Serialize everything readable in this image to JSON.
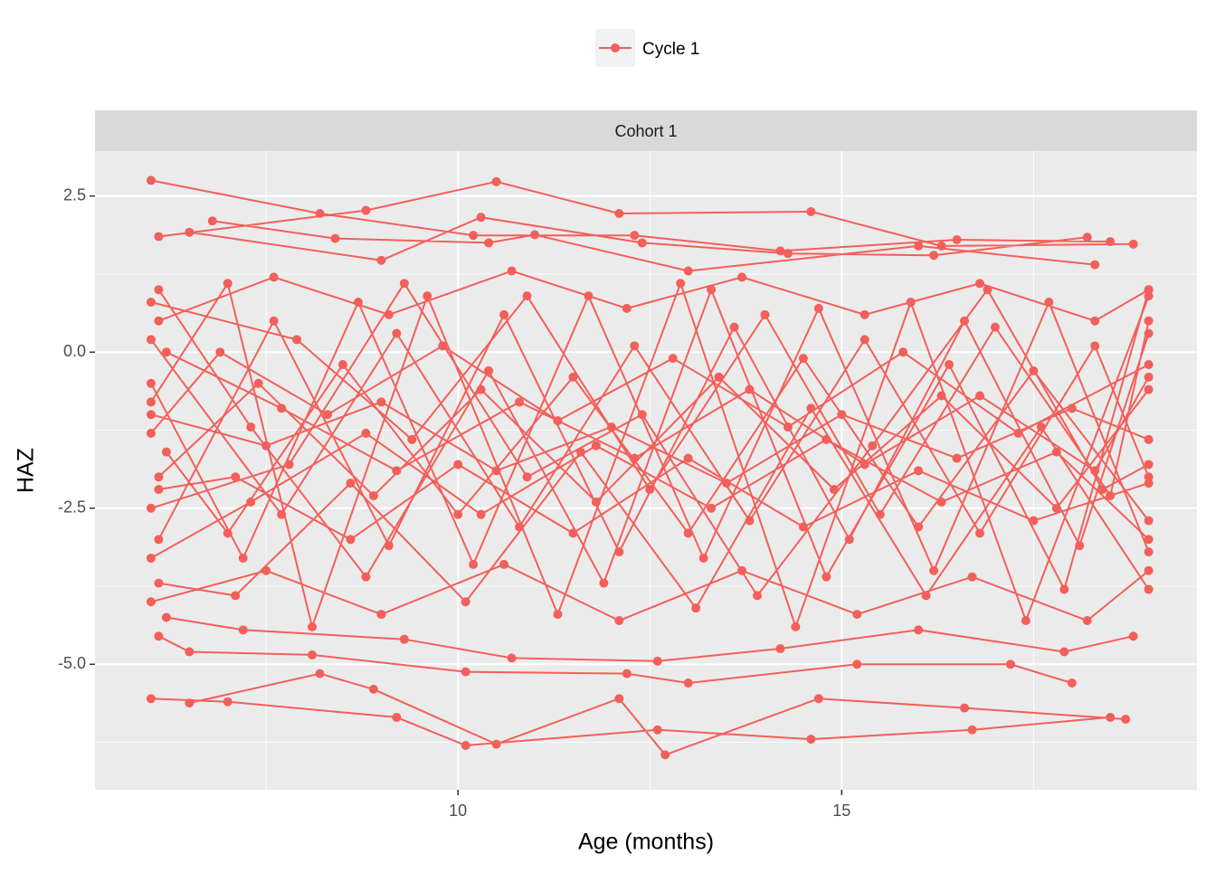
{
  "chart_data": {
    "type": "line",
    "facet": "Cohort 1",
    "x_label": "Age (months)",
    "y_label": "HAZ",
    "xlim": [
      5.27,
      19.63
    ],
    "xticks": [
      10,
      15
    ],
    "x_minor_grid": [
      7.5,
      12.5,
      17.5
    ],
    "ylim": [
      -7.01,
      3.22
    ],
    "yticks": [
      2.5,
      {
        "value": 0,
        "label": "0.0"
      },
      -2.5,
      {
        "value": -5,
        "label": "-5.0"
      }
    ],
    "y_minor_grid": [
      1.25,
      -1.25,
      -3.75,
      -6.25
    ],
    "grid": true,
    "legend_position": "top",
    "x": [
      6.0,
      8.2,
      10.2,
      12.3,
      14.2,
      16.5,
      18.5,
      null,
      6.1,
      8.8,
      10.5,
      12.1,
      14.6,
      16.3,
      18.8,
      null,
      6.5,
      9.0,
      10.3,
      12.4,
      14.3,
      16.2,
      18.2,
      null,
      6.8,
      8.4,
      10.4,
      11.0,
      13.0,
      16.0,
      18.3,
      null,
      6.0,
      7.0,
      9.2,
      10.1,
      12.6,
      14.6,
      16.7,
      18.5,
      null,
      6.5,
      8.2,
      8.9,
      10.5,
      12.1,
      12.7,
      14.7,
      16.6,
      18.7,
      null,
      6.1,
      6.5,
      8.1,
      10.1,
      12.2,
      13.0,
      15.2,
      17.2,
      18.0,
      null,
      6.2,
      7.2,
      9.3,
      10.7,
      12.6,
      14.2,
      16.0,
      17.9,
      18.8,
      null,
      6.0,
      7.5,
      9.0,
      10.5,
      12.0,
      13.5,
      15.0,
      16.5,
      18.0,
      19.0,
      null,
      6.1,
      7.4,
      8.9,
      10.3,
      11.8,
      13.4,
      14.9,
      16.3,
      17.8,
      19.0,
      null,
      6.0,
      7.7,
      9.2,
      10.8,
      12.3,
      13.8,
      15.3,
      16.8,
      18.3,
      19.0,
      null,
      6.1,
      7.6,
      9.1,
      10.6,
      12.1,
      13.6,
      15.1,
      16.6,
      18.1,
      19.0,
      null,
      6.0,
      7.2,
      8.7,
      10.2,
      11.7,
      13.2,
      14.7,
      16.2,
      17.7,
      19.0,
      null,
      6.1,
      7.3,
      8.8,
      10.4,
      11.9,
      13.3,
      14.8,
      16.4,
      17.9,
      19.0,
      null,
      6.0,
      7.8,
      9.3,
      10.9,
      12.4,
      13.9,
      15.4,
      16.9,
      18.4,
      19.0,
      null,
      6.1,
      7.1,
      8.6,
      10.1,
      11.6,
      13.1,
      14.6,
      16.1,
      17.6,
      19.0,
      null,
      6.0,
      7.9,
      9.4,
      10.9,
      12.5,
      14.0,
      15.5,
      17.0,
      18.5,
      19.0,
      null,
      6.2,
      7.0,
      8.5,
      10.0,
      11.5,
      13.0,
      14.5,
      16.0,
      17.5,
      19.0,
      null,
      6.0,
      7.5,
      9.0,
      10.6,
      12.1,
      13.7,
      15.2,
      16.7,
      18.2,
      19.0,
      null,
      6.1,
      7.6,
      9.1,
      10.7,
      12.2,
      13.7,
      15.3,
      16.8,
      18.3,
      19.0,
      null,
      6.0,
      6.9,
      8.3,
      9.8,
      11.3,
      12.8,
      14.3,
      15.8,
      17.3,
      19.0,
      null,
      6.1,
      7.1,
      8.6,
      10.0,
      11.5,
      13.0,
      14.5,
      16.0,
      17.5,
      19.0,
      null,
      6.0,
      7.3,
      8.8,
      10.3,
      11.8,
      13.3,
      14.8,
      16.3,
      17.8,
      19.0,
      null,
      6.2,
      7.7,
      9.2,
      10.8,
      12.3,
      13.8,
      15.3,
      16.8,
      18.3,
      19.0,
      null,
      6.0,
      7.0,
      8.1,
      9.6,
      11.3,
      12.9,
      14.4,
      15.9,
      17.4,
      19.0
    ],
    "series": [
      {
        "name": "Cycle 1",
        "color": "#f35f5a",
        "values": [
          2.75,
          2.22,
          1.87,
          1.87,
          1.62,
          1.8,
          1.77,
          null,
          1.85,
          2.27,
          2.73,
          2.22,
          2.25,
          1.7,
          1.73,
          null,
          1.92,
          1.47,
          2.16,
          1.75,
          1.58,
          1.55,
          1.84,
          null,
          2.1,
          1.82,
          1.75,
          1.88,
          1.3,
          1.7,
          1.4,
          null,
          -5.55,
          -5.6,
          -5.85,
          -6.3,
          -6.05,
          -6.2,
          -6.05,
          -5.85,
          null,
          -5.62,
          -5.15,
          -5.4,
          -6.28,
          -5.55,
          -6.45,
          -5.55,
          -5.7,
          -5.88,
          null,
          -4.55,
          -4.8,
          -4.85,
          -5.12,
          -5.15,
          -5.3,
          -5.0,
          -5.0,
          -5.3,
          null,
          -4.25,
          -4.45,
          -4.6,
          -4.9,
          -4.95,
          -4.75,
          -4.45,
          -4.8,
          -4.55,
          null,
          -1.0,
          -1.5,
          -0.8,
          -1.9,
          -1.2,
          -2.1,
          -1.0,
          -1.7,
          -0.9,
          -1.4,
          null,
          -2.0,
          -0.5,
          -2.3,
          -0.6,
          -2.4,
          -0.4,
          -2.2,
          -0.7,
          -2.5,
          -0.6,
          null,
          0.2,
          -2.6,
          0.3,
          -2.8,
          0.1,
          -2.7,
          0.2,
          -2.9,
          0.1,
          -2.0,
          null,
          -3.0,
          0.5,
          -3.1,
          0.6,
          -3.2,
          0.4,
          -3.0,
          0.5,
          -3.1,
          0.3,
          null,
          -0.5,
          -3.3,
          0.8,
          -3.4,
          0.9,
          -3.3,
          0.7,
          -3.5,
          0.8,
          -3.2,
          null,
          1.0,
          -1.2,
          -3.6,
          -0.3,
          -3.7,
          1.0,
          -3.6,
          -0.2,
          -3.8,
          1.0,
          null,
          -2.5,
          -1.8,
          1.1,
          -2.0,
          -1.0,
          -3.9,
          -1.5,
          1.0,
          -2.2,
          -1.8,
          null,
          -3.7,
          -3.9,
          -2.1,
          -4.0,
          -1.6,
          -4.1,
          -0.9,
          -3.9,
          -1.2,
          -3.8,
          null,
          0.8,
          0.2,
          -1.4,
          0.9,
          -2.2,
          0.6,
          -2.6,
          0.4,
          -2.3,
          0.5,
          null,
          -1.6,
          -2.9,
          -0.2,
          -2.6,
          -0.4,
          -2.9,
          -0.1,
          -2.8,
          -0.3,
          -2.7,
          null,
          -4.0,
          -3.5,
          -4.2,
          -3.4,
          -4.3,
          -3.5,
          -4.2,
          -3.6,
          -4.3,
          -3.5,
          null,
          0.5,
          1.2,
          0.6,
          1.3,
          0.7,
          1.2,
          0.6,
          1.1,
          0.5,
          1.0,
          null,
          -1.3,
          0.0,
          -1.0,
          0.1,
          -1.1,
          -0.1,
          -1.2,
          0.0,
          -1.3,
          -0.2,
          null,
          -2.2,
          -2.0,
          -3.0,
          -1.8,
          -2.9,
          -1.7,
          -2.8,
          -1.9,
          -2.7,
          -2.1,
          null,
          -3.3,
          -2.4,
          -1.3,
          -2.6,
          -1.5,
          -2.5,
          -1.4,
          -2.4,
          -1.6,
          -3.0,
          null,
          0.0,
          -0.9,
          -1.9,
          -0.8,
          -1.7,
          -0.6,
          -1.8,
          -0.7,
          -1.9,
          -0.4,
          null,
          -0.8,
          1.1,
          -4.4,
          0.9,
          -4.2,
          1.1,
          -4.4,
          0.8,
          -4.3,
          0.9
        ]
      }
    ]
  }
}
